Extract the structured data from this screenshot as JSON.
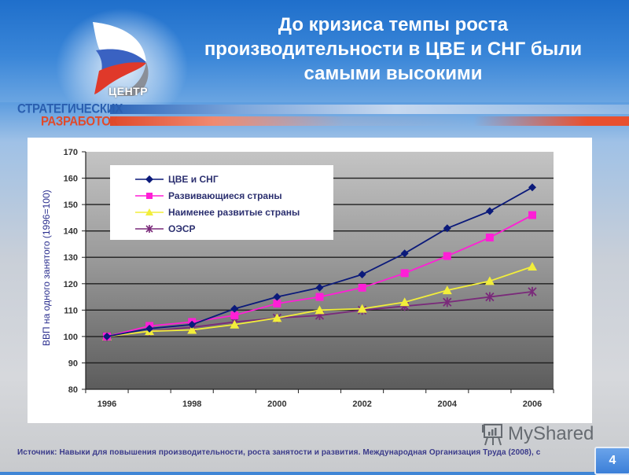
{
  "slide": {
    "title": "До кризиса темпы роста производительности в ЦВЕ и СНГ были самыми высокими",
    "title_lines": [
      "До кризиса темпы роста",
      "производительности в ЦВЕ и СНГ были",
      "самыми высокими"
    ],
    "page_number": "4",
    "source": "Источник: Навыки для повышения производительности, роста занятости и развития. Международная Организация Труда (2008), с",
    "watermark": "MyShared"
  },
  "logo": {
    "top_word": "ЦЕНТР",
    "line1": "СТРАТЕГИЧЕСКИХ",
    "line2": "РАЗРАБОТОК",
    "colors": {
      "blue": "#2a5fb0",
      "red": "#e04a2a"
    }
  },
  "chart_data": {
    "type": "line",
    "title": "",
    "xlabel": "",
    "ylabel": "ВВП на одного занятого (1996=100)",
    "x": [
      1996,
      1997,
      1998,
      1999,
      2000,
      2001,
      2002,
      2003,
      2004,
      2005,
      2006
    ],
    "x_tick_labels": [
      "1996",
      "1998",
      "2000",
      "2002",
      "2004",
      "2006"
    ],
    "y_tick_labels": [
      "170",
      "160",
      "150",
      "140",
      "130",
      "120",
      "110",
      "100",
      "90",
      "80"
    ],
    "ylim": [
      80,
      170
    ],
    "grid": true,
    "legend_position": "upper-left-inside",
    "series": [
      {
        "name": "ЦВЕ и СНГ",
        "color": "#0b1a7a",
        "marker": "diamond",
        "values": [
          100,
          103,
          104.5,
          110.5,
          115,
          118.5,
          123.5,
          131.5,
          141,
          147.5,
          156.5
        ]
      },
      {
        "name": "Развивающиеся страны",
        "color": "#ff1fd6",
        "marker": "square",
        "values": [
          100,
          104,
          105.5,
          108,
          112.5,
          115,
          118.5,
          124,
          130.5,
          137.5,
          146
        ]
      },
      {
        "name": "Наименее развитые страны",
        "color": "#f2ee3a",
        "marker": "triangle",
        "values": [
          100,
          102,
          102.5,
          104.5,
          107,
          110,
          110.5,
          113,
          117.5,
          121,
          126.5
        ]
      },
      {
        "name": "ОЭСР",
        "color": "#7a2a7a",
        "marker": "star",
        "values": [
          100,
          102,
          103.5,
          105.5,
          107,
          108,
          110,
          111.5,
          113,
          115,
          117
        ]
      }
    ]
  }
}
